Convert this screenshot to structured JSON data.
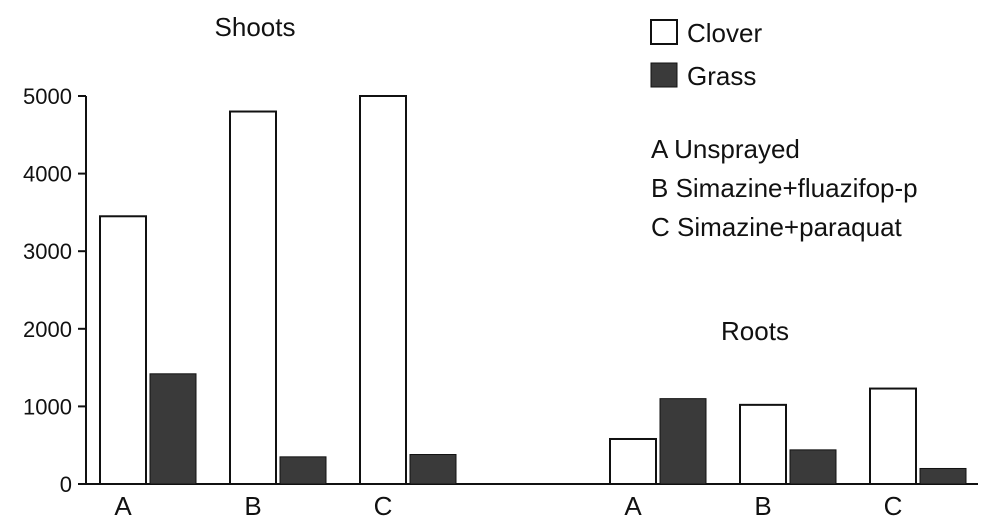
{
  "chart_data": {
    "type": "bar",
    "ylim": [
      0,
      5000
    ],
    "yticks": [
      0,
      1000,
      2000,
      3000,
      4000,
      5000
    ],
    "grid": false,
    "legend_position": "top-right",
    "colors": {
      "Clover": "#ffffff",
      "Grass": "#3a3a3a"
    },
    "groups": [
      {
        "label": "Shoots",
        "categories": [
          "A",
          "B",
          "C"
        ],
        "series": [
          {
            "name": "Clover",
            "values": [
              3450,
              4800,
              5000
            ]
          },
          {
            "name": "Grass",
            "values": [
              1420,
              350,
              380
            ]
          }
        ]
      },
      {
        "label": "Roots",
        "categories": [
          "A",
          "B",
          "C"
        ],
        "series": [
          {
            "name": "Clover",
            "values": [
              580,
              1020,
              1230
            ]
          },
          {
            "name": "Grass",
            "values": [
              1100,
              440,
              200
            ]
          }
        ]
      }
    ],
    "legend": [
      "Clover",
      "Grass"
    ],
    "annotations": [
      "A Unsprayed",
      "B Simazine+fluazifop-p",
      "C Simazine+paraquat"
    ]
  }
}
